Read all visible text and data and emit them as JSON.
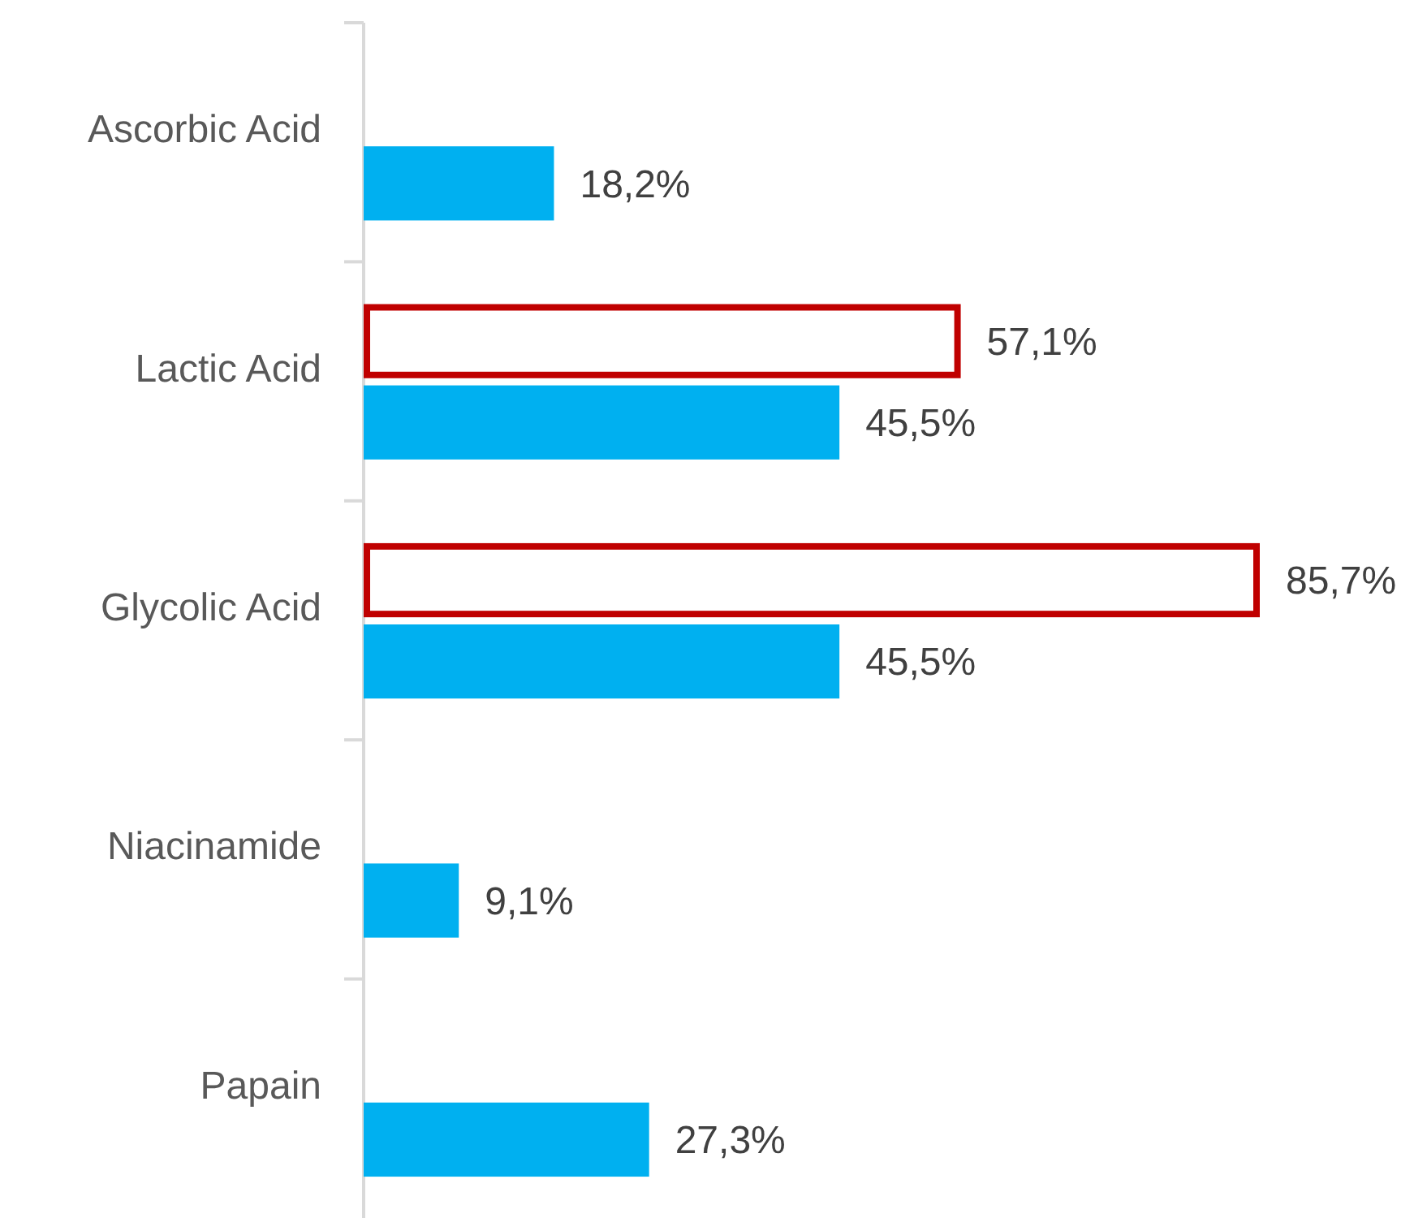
{
  "chart_data": {
    "type": "bar",
    "orientation": "horizontal",
    "categories": [
      "Ascorbic Acid",
      "Lactic Acid",
      "Glycolic Acid",
      "Niacinamide",
      "Papain"
    ],
    "series": [
      {
        "color": "#c00000",
        "values": [
          null,
          57.1,
          85.7,
          null,
          null
        ],
        "value_labels": [
          null,
          "57,1%",
          "85,7%",
          null,
          null
        ]
      },
      {
        "color": "#00b0f0",
        "values": [
          18.2,
          45.5,
          45.5,
          9.1,
          27.3
        ],
        "value_labels": [
          "18,2%",
          "45,5%",
          "45,5%",
          "9,1%",
          "27,3%"
        ]
      }
    ]
  }
}
